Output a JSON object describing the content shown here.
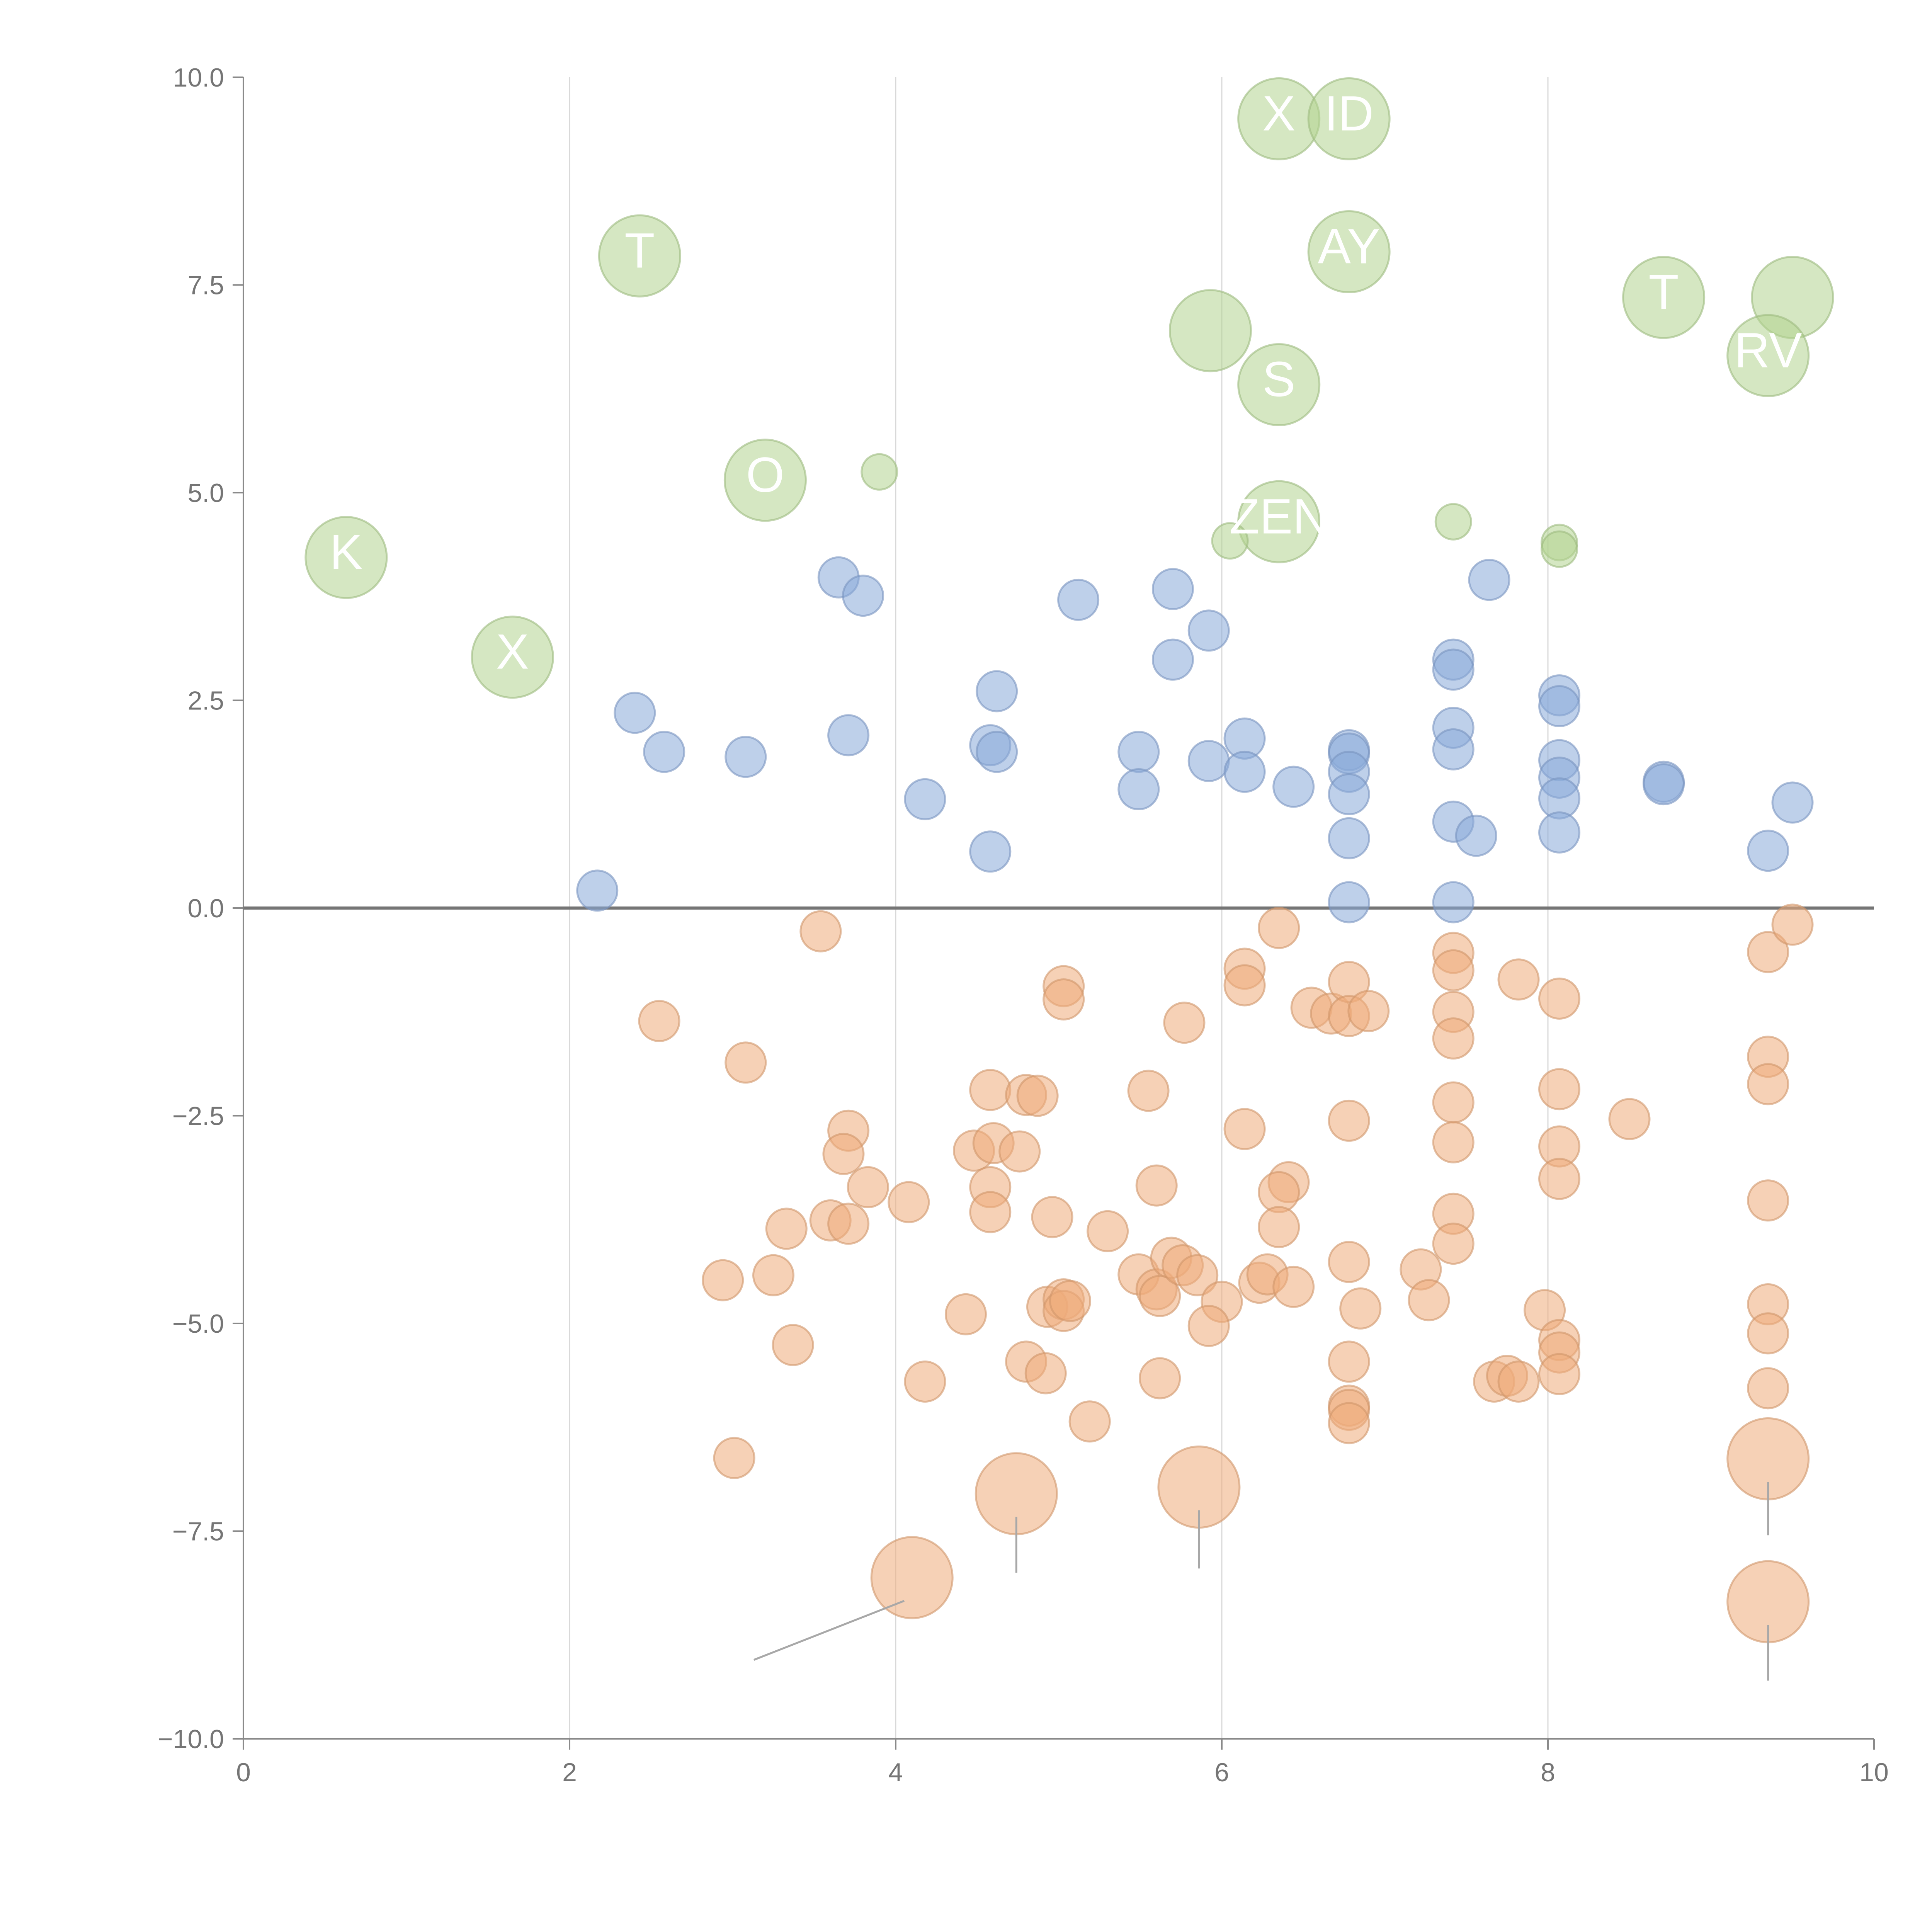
{
  "chart_data": {
    "type": "scatter",
    "title": "",
    "xlabel": "",
    "ylabel": "",
    "xlim": [
      0,
      10
    ],
    "ylim": [
      -10,
      10
    ],
    "x_ticks": [
      "0",
      "2",
      "4",
      "6",
      "8",
      "10"
    ],
    "y_ticks": [
      "−10.0",
      "−7.5",
      "−5.0",
      "−2.5",
      "0.0",
      "2.5",
      "5.0",
      "7.5",
      "10.0"
    ],
    "grid": "vertical",
    "legend": "none",
    "colors": {
      "green": "#b2d48f",
      "blue": "#89a9d9",
      "orange": "#eeab7a",
      "axis": "#8a8a8a",
      "grid": "#d9d9d9",
      "zero": "#757575"
    },
    "series": [
      {
        "name": "green",
        "color": "#b2d48f",
        "points": [
          {
            "x": 6.35,
            "y": 9.5,
            "r": 1.0,
            "label": "X"
          },
          {
            "x": 6.78,
            "y": 9.5,
            "r": 1.0,
            "label": "ID"
          },
          {
            "x": 2.43,
            "y": 7.85,
            "r": 1.0,
            "label": "T"
          },
          {
            "x": 6.78,
            "y": 7.9,
            "r": 1.0,
            "label": "AY"
          },
          {
            "x": 5.93,
            "y": 6.95,
            "r": 1.0,
            "label": ""
          },
          {
            "x": 8.71,
            "y": 7.35,
            "r": 1.0,
            "label": "T"
          },
          {
            "x": 9.5,
            "y": 7.35,
            "r": 1.0,
            "label": ""
          },
          {
            "x": 9.35,
            "y": 6.65,
            "r": 1.0,
            "label": "RV"
          },
          {
            "x": 6.35,
            "y": 6.3,
            "r": 1.0,
            "label": "S"
          },
          {
            "x": 3.2,
            "y": 5.15,
            "r": 1.0,
            "label": "O"
          },
          {
            "x": 3.9,
            "y": 5.25,
            "r": 0.42,
            "label": ""
          },
          {
            "x": 0.63,
            "y": 4.22,
            "r": 1.0,
            "label": "K"
          },
          {
            "x": 6.35,
            "y": 4.65,
            "r": 1.0,
            "label": "ZEN"
          },
          {
            "x": 6.05,
            "y": 4.42,
            "r": 0.42,
            "label": ""
          },
          {
            "x": 7.42,
            "y": 4.65,
            "r": 0.42,
            "label": ""
          },
          {
            "x": 8.07,
            "y": 4.4,
            "r": 0.42,
            "label": ""
          },
          {
            "x": 8.07,
            "y": 4.32,
            "r": 0.42,
            "label": ""
          },
          {
            "x": 1.65,
            "y": 3.02,
            "r": 1.0,
            "label": "X"
          }
        ]
      },
      {
        "name": "blue",
        "color": "#89a9d9",
        "points": [
          {
            "x": 3.65,
            "y": 3.98
          },
          {
            "x": 3.8,
            "y": 3.76
          },
          {
            "x": 5.12,
            "y": 3.71
          },
          {
            "x": 5.7,
            "y": 3.84
          },
          {
            "x": 5.92,
            "y": 3.34
          },
          {
            "x": 5.7,
            "y": 2.99
          },
          {
            "x": 7.64,
            "y": 3.95
          },
          {
            "x": 7.42,
            "y": 2.99
          },
          {
            "x": 7.42,
            "y": 2.87
          },
          {
            "x": 8.07,
            "y": 2.56
          },
          {
            "x": 8.07,
            "y": 2.43
          },
          {
            "x": 2.4,
            "y": 2.35
          },
          {
            "x": 2.58,
            "y": 1.88
          },
          {
            "x": 3.08,
            "y": 1.82
          },
          {
            "x": 3.71,
            "y": 2.08
          },
          {
            "x": 4.62,
            "y": 2.61
          },
          {
            "x": 4.58,
            "y": 1.96
          },
          {
            "x": 4.62,
            "y": 1.88
          },
          {
            "x": 4.18,
            "y": 1.31
          },
          {
            "x": 4.58,
            "y": 0.68
          },
          {
            "x": 5.49,
            "y": 1.88
          },
          {
            "x": 5.49,
            "y": 1.43
          },
          {
            "x": 5.92,
            "y": 1.77
          },
          {
            "x": 6.14,
            "y": 2.04
          },
          {
            "x": 6.14,
            "y": 1.64
          },
          {
            "x": 6.44,
            "y": 1.46
          },
          {
            "x": 6.78,
            "y": 1.9
          },
          {
            "x": 6.78,
            "y": 1.86
          },
          {
            "x": 6.78,
            "y": 1.64
          },
          {
            "x": 6.78,
            "y": 1.37
          },
          {
            "x": 6.78,
            "y": 0.84
          },
          {
            "x": 6.78,
            "y": 0.07
          },
          {
            "x": 7.42,
            "y": 2.17
          },
          {
            "x": 7.42,
            "y": 1.91
          },
          {
            "x": 7.42,
            "y": 1.04
          },
          {
            "x": 7.56,
            "y": 0.87
          },
          {
            "x": 7.42,
            "y": 0.07
          },
          {
            "x": 8.07,
            "y": 1.78
          },
          {
            "x": 8.07,
            "y": 1.57
          },
          {
            "x": 8.07,
            "y": 1.32
          },
          {
            "x": 8.07,
            "y": 0.91
          },
          {
            "x": 8.71,
            "y": 1.52
          },
          {
            "x": 8.71,
            "y": 1.49
          },
          {
            "x": 9.35,
            "y": 0.69
          },
          {
            "x": 9.5,
            "y": 1.27
          },
          {
            "x": 2.17,
            "y": 0.21
          }
        ]
      },
      {
        "name": "orange",
        "color": "#eeab7a",
        "points": [
          {
            "x": 3.54,
            "y": -0.28
          },
          {
            "x": 2.55,
            "y": -1.36
          },
          {
            "x": 3.08,
            "y": -1.86
          },
          {
            "x": 5.03,
            "y": -0.94
          },
          {
            "x": 5.03,
            "y": -1.1
          },
          {
            "x": 5.77,
            "y": -1.38
          },
          {
            "x": 6.35,
            "y": -0.24
          },
          {
            "x": 6.14,
            "y": -0.73
          },
          {
            "x": 6.14,
            "y": -0.93
          },
          {
            "x": 6.55,
            "y": -1.2
          },
          {
            "x": 6.67,
            "y": -1.27
          },
          {
            "x": 6.78,
            "y": -0.89
          },
          {
            "x": 6.78,
            "y": -1.3
          },
          {
            "x": 6.9,
            "y": -1.24
          },
          {
            "x": 7.42,
            "y": -0.54
          },
          {
            "x": 7.42,
            "y": -0.75
          },
          {
            "x": 7.42,
            "y": -1.25
          },
          {
            "x": 7.42,
            "y": -1.57
          },
          {
            "x": 7.82,
            "y": -0.86
          },
          {
            "x": 8.07,
            "y": -1.09
          },
          {
            "x": 9.35,
            "y": -0.53
          },
          {
            "x": 9.5,
            "y": -0.2
          },
          {
            "x": 4.58,
            "y": -2.19
          },
          {
            "x": 4.8,
            "y": -2.25
          },
          {
            "x": 4.87,
            "y": -2.26
          },
          {
            "x": 5.55,
            "y": -2.2
          },
          {
            "x": 3.71,
            "y": -2.68
          },
          {
            "x": 3.68,
            "y": -2.96
          },
          {
            "x": 3.83,
            "y": -3.36
          },
          {
            "x": 4.48,
            "y": -2.92
          },
          {
            "x": 4.6,
            "y": -2.83
          },
          {
            "x": 4.76,
            "y": -2.93
          },
          {
            "x": 4.58,
            "y": -3.36
          },
          {
            "x": 4.58,
            "y": -3.66
          },
          {
            "x": 4.08,
            "y": -3.54
          },
          {
            "x": 3.6,
            "y": -3.76
          },
          {
            "x": 3.71,
            "y": -3.8
          },
          {
            "x": 3.33,
            "y": -3.86
          },
          {
            "x": 2.94,
            "y": -4.48
          },
          {
            "x": 3.25,
            "y": -4.42
          },
          {
            "x": 3.37,
            "y": -5.26
          },
          {
            "x": 3.01,
            "y": -6.62
          },
          {
            "x": 4.96,
            "y": -3.72
          },
          {
            "x": 5.3,
            "y": -3.89
          },
          {
            "x": 5.6,
            "y": -3.34
          },
          {
            "x": 6.14,
            "y": -2.66
          },
          {
            "x": 6.41,
            "y": -3.3
          },
          {
            "x": 6.35,
            "y": -3.42
          },
          {
            "x": 6.35,
            "y": -3.84
          },
          {
            "x": 6.78,
            "y": -2.56
          },
          {
            "x": 7.42,
            "y": -2.34
          },
          {
            "x": 7.42,
            "y": -2.82
          },
          {
            "x": 8.07,
            "y": -2.18
          },
          {
            "x": 8.07,
            "y": -2.87
          },
          {
            "x": 8.07,
            "y": -3.26
          },
          {
            "x": 8.5,
            "y": -2.54
          },
          {
            "x": 9.35,
            "y": -1.79
          },
          {
            "x": 9.35,
            "y": -2.12
          },
          {
            "x": 9.35,
            "y": -3.52
          },
          {
            "x": 7.42,
            "y": -3.68
          },
          {
            "x": 7.42,
            "y": -4.04
          },
          {
            "x": 4.43,
            "y": -4.89
          },
          {
            "x": 4.18,
            "y": -5.7
          },
          {
            "x": 4.8,
            "y": -5.46
          },
          {
            "x": 4.92,
            "y": -5.6
          },
          {
            "x": 4.93,
            "y": -4.8
          },
          {
            "x": 5.03,
            "y": -4.71
          },
          {
            "x": 5.03,
            "y": -4.85
          },
          {
            "x": 5.07,
            "y": -4.73
          },
          {
            "x": 5.19,
            "y": -6.18
          },
          {
            "x": 5.49,
            "y": -4.41
          },
          {
            "x": 5.6,
            "y": -4.59
          },
          {
            "x": 5.62,
            "y": -4.67
          },
          {
            "x": 5.69,
            "y": -4.21
          },
          {
            "x": 5.76,
            "y": -4.3
          },
          {
            "x": 5.85,
            "y": -4.42
          },
          {
            "x": 6.0,
            "y": -4.74
          },
          {
            "x": 5.92,
            "y": -5.03
          },
          {
            "x": 5.62,
            "y": -5.66
          },
          {
            "x": 6.23,
            "y": -4.51
          },
          {
            "x": 6.28,
            "y": -4.41
          },
          {
            "x": 6.44,
            "y": -4.56
          },
          {
            "x": 6.78,
            "y": -4.26
          },
          {
            "x": 6.85,
            "y": -4.82
          },
          {
            "x": 6.78,
            "y": -5.46
          },
          {
            "x": 6.78,
            "y": -5.99
          },
          {
            "x": 6.78,
            "y": -6.04
          },
          {
            "x": 6.78,
            "y": -6.2
          },
          {
            "x": 7.22,
            "y": -4.35
          },
          {
            "x": 7.27,
            "y": -4.72
          },
          {
            "x": 7.67,
            "y": -5.7
          },
          {
            "x": 7.75,
            "y": -5.63
          },
          {
            "x": 7.82,
            "y": -5.7
          },
          {
            "x": 7.98,
            "y": -4.84
          },
          {
            "x": 8.07,
            "y": -5.2
          },
          {
            "x": 8.07,
            "y": -5.35
          },
          {
            "x": 8.07,
            "y": -5.61
          },
          {
            "x": 9.35,
            "y": -4.77
          },
          {
            "x": 9.35,
            "y": -5.12
          },
          {
            "x": 9.35,
            "y": -5.78
          }
        ]
      },
      {
        "name": "orange-large",
        "color": "#eeab7a",
        "points": [
          {
            "x": 4.1,
            "y": -8.06,
            "r": 1.0,
            "lx": 3.13,
            "ly": -9.05
          },
          {
            "x": 4.74,
            "y": -7.05,
            "r": 1.0,
            "lx": 4.74,
            "ly": -8.0
          },
          {
            "x": 5.86,
            "y": -6.97,
            "r": 1.0,
            "lx": 5.86,
            "ly": -7.95
          },
          {
            "x": 9.35,
            "y": -6.63,
            "r": 1.0,
            "lx": 9.35,
            "ly": -7.55
          },
          {
            "x": 9.35,
            "y": -8.35,
            "r": 1.0,
            "lx": 9.35,
            "ly": -9.3
          }
        ]
      }
    ]
  }
}
